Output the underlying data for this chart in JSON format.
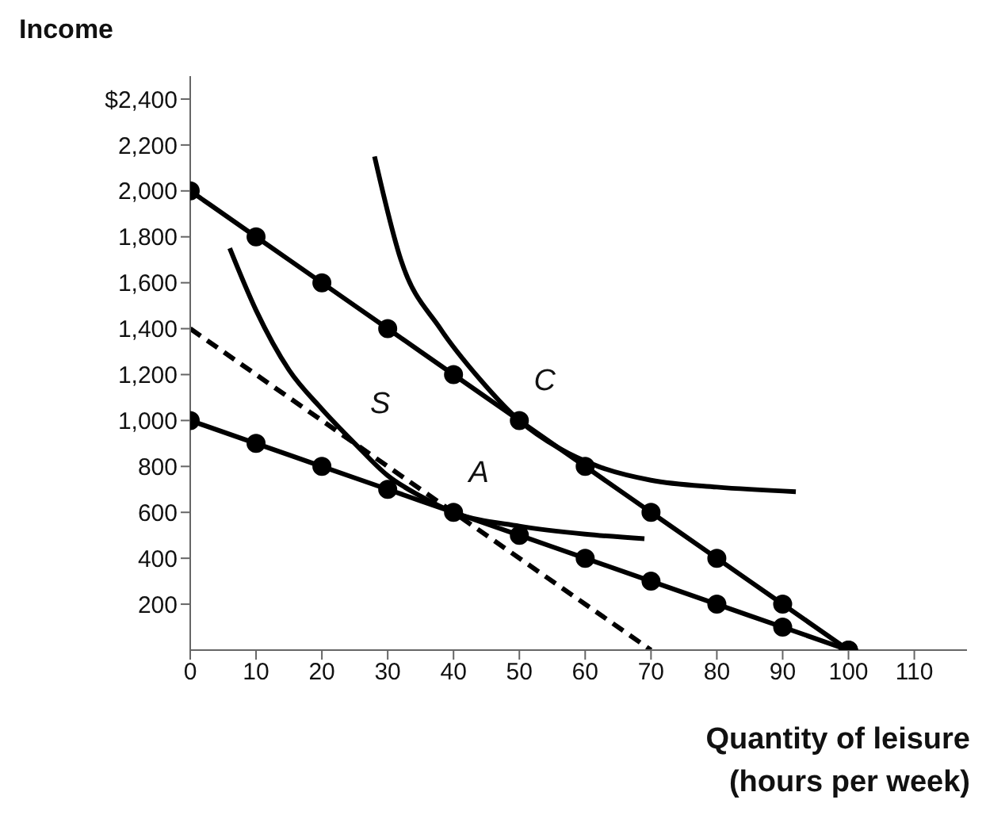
{
  "chart_data": {
    "type": "line",
    "xlabel": "Quantity of leisure\n(hours per week)",
    "ylabel": "Income",
    "xlim": [
      0,
      118
    ],
    "xticks": [
      0,
      10,
      20,
      30,
      40,
      50,
      60,
      70,
      80,
      90,
      100,
      110
    ],
    "ylim": [
      0,
      2500
    ],
    "yticks": [
      200,
      400,
      600,
      800,
      {
        "value": 1000,
        "label": "1,000"
      },
      {
        "value": 1200,
        "label": "1,200"
      },
      {
        "value": 1400,
        "label": "1,400"
      },
      {
        "value": 1600,
        "label": "1,600"
      },
      {
        "value": 1800,
        "label": "1,800"
      },
      {
        "value": 2000,
        "label": "2,000"
      },
      {
        "value": 2200,
        "label": "2,200"
      },
      {
        "value": 2400,
        "label": "$2,400"
      }
    ],
    "grid": false,
    "series": [
      {
        "color": "#000000",
        "marker": "circle",
        "line_style": "solid",
        "x": [
          0,
          10,
          20,
          30,
          40,
          50,
          60,
          70,
          80,
          90,
          100
        ],
        "values": [
          2000,
          1800,
          1600,
          1400,
          1200,
          1000,
          800,
          600,
          400,
          200,
          0
        ]
      },
      {
        "color": "#000000",
        "marker": "circle",
        "line_style": "solid",
        "x": [
          0,
          10,
          20,
          30,
          40,
          50,
          60,
          70,
          80,
          90,
          100
        ],
        "values": [
          1000,
          900,
          800,
          700,
          600,
          500,
          400,
          300,
          200,
          100,
          0
        ]
      },
      {
        "color": "#000000",
        "marker": "none",
        "line_style": "dashed",
        "x": [
          0,
          70
        ],
        "values": [
          1400,
          0
        ]
      },
      {
        "color": "#000000",
        "marker": "none",
        "line_style": "solid",
        "x": [
          28,
          32,
          38,
          44,
          50,
          56,
          62,
          70,
          80,
          92
        ],
        "values": [
          2150,
          1700,
          1400,
          1180,
          1000,
          880,
          800,
          740,
          710,
          690
        ]
      },
      {
        "color": "#000000",
        "marker": "none",
        "line_style": "solid",
        "x": [
          6,
          10,
          15,
          20,
          25,
          30,
          35,
          40,
          50,
          60,
          69
        ],
        "values": [
          1750,
          1480,
          1220,
          1050,
          900,
          760,
          670,
          600,
          540,
          505,
          485
        ]
      }
    ],
    "annotations": [
      {
        "text": "S",
        "x": 25,
        "y": 900
      },
      {
        "text": "C",
        "x": 50,
        "y": 1000
      },
      {
        "text": "A",
        "x": 40,
        "y": 600
      }
    ]
  }
}
